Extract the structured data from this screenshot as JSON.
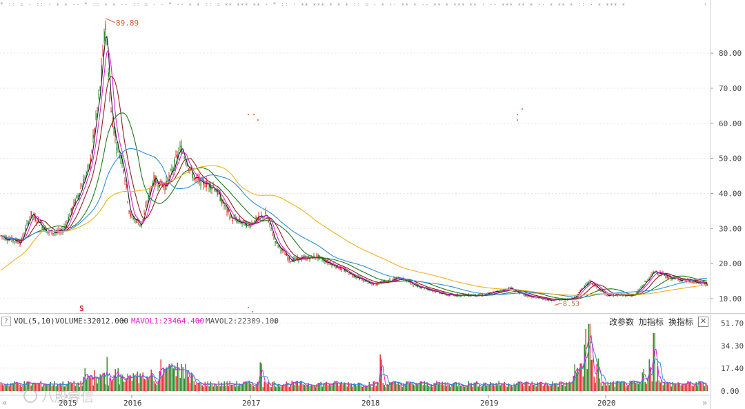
{
  "top_strip": {
    "text": "* :: = · :: ·  ∗ ∗  ·· * :: ∗ ∗ ·· :: = ·  ·  * ·· ∗ ∗ :: =  ∗∗ ∗∗∗ ∗∗ ·  * :: · ∗∗ ∗∗∗ ∗ ∗  ∗ :: = ·  ∗ ·· ∗∗ ∗ ·· ∗∗  ∗ ∗∗∗ ∗∗ ·  ·· ∗∗∗ ∗∗ ∗ ·· ∗ ∗∗ ∗ :: · ∗ ∗∗∗ ∗"
  },
  "price_axis": {
    "labels": [
      "80.00",
      "70.00",
      "60.00",
      "50.00",
      "40.00",
      "30.00",
      "20.00",
      "10.00"
    ],
    "values": [
      80,
      70,
      60,
      50,
      40,
      30,
      20,
      10
    ]
  },
  "annotations": {
    "high_value": "89.89",
    "low_value": "8.53",
    "signal_mark": "S"
  },
  "volume_header": {
    "help": "?",
    "indicator": "VOL(5,10)",
    "volume": "VOLUME:32012.000",
    "mavol1": "MAVOL1:23464.400",
    "mavol2": "MAVOL2:22309.100",
    "change_params": "改参数",
    "add_indicator": "加指标",
    "switch_indicator": "换指标",
    "close": "✕"
  },
  "volume_axis": {
    "labels": [
      "51.70",
      "34.30",
      "17.40",
      "0.00"
    ],
    "values": [
      51.7,
      34.3,
      17.4,
      0
    ]
  },
  "time_axis": {
    "years": [
      "2015",
      "2016",
      "2017",
      "2018",
      "2019",
      "2020"
    ]
  },
  "watermark": "八股睿信",
  "colors": {
    "up": "#e8333a",
    "down": "#2f8f2f",
    "ma5": "#222222",
    "ma10": "#e020d0",
    "ma20": "#8a2020",
    "ma60": "#1d7a1d",
    "ma120": "#2c8fd6",
    "ma250": "#f0b01a",
    "grid": "#e4e4e4",
    "annotation": "#e0582a",
    "vol_ma1": "#e020d0",
    "vol_ma2": "#2c8fd6"
  }
}
